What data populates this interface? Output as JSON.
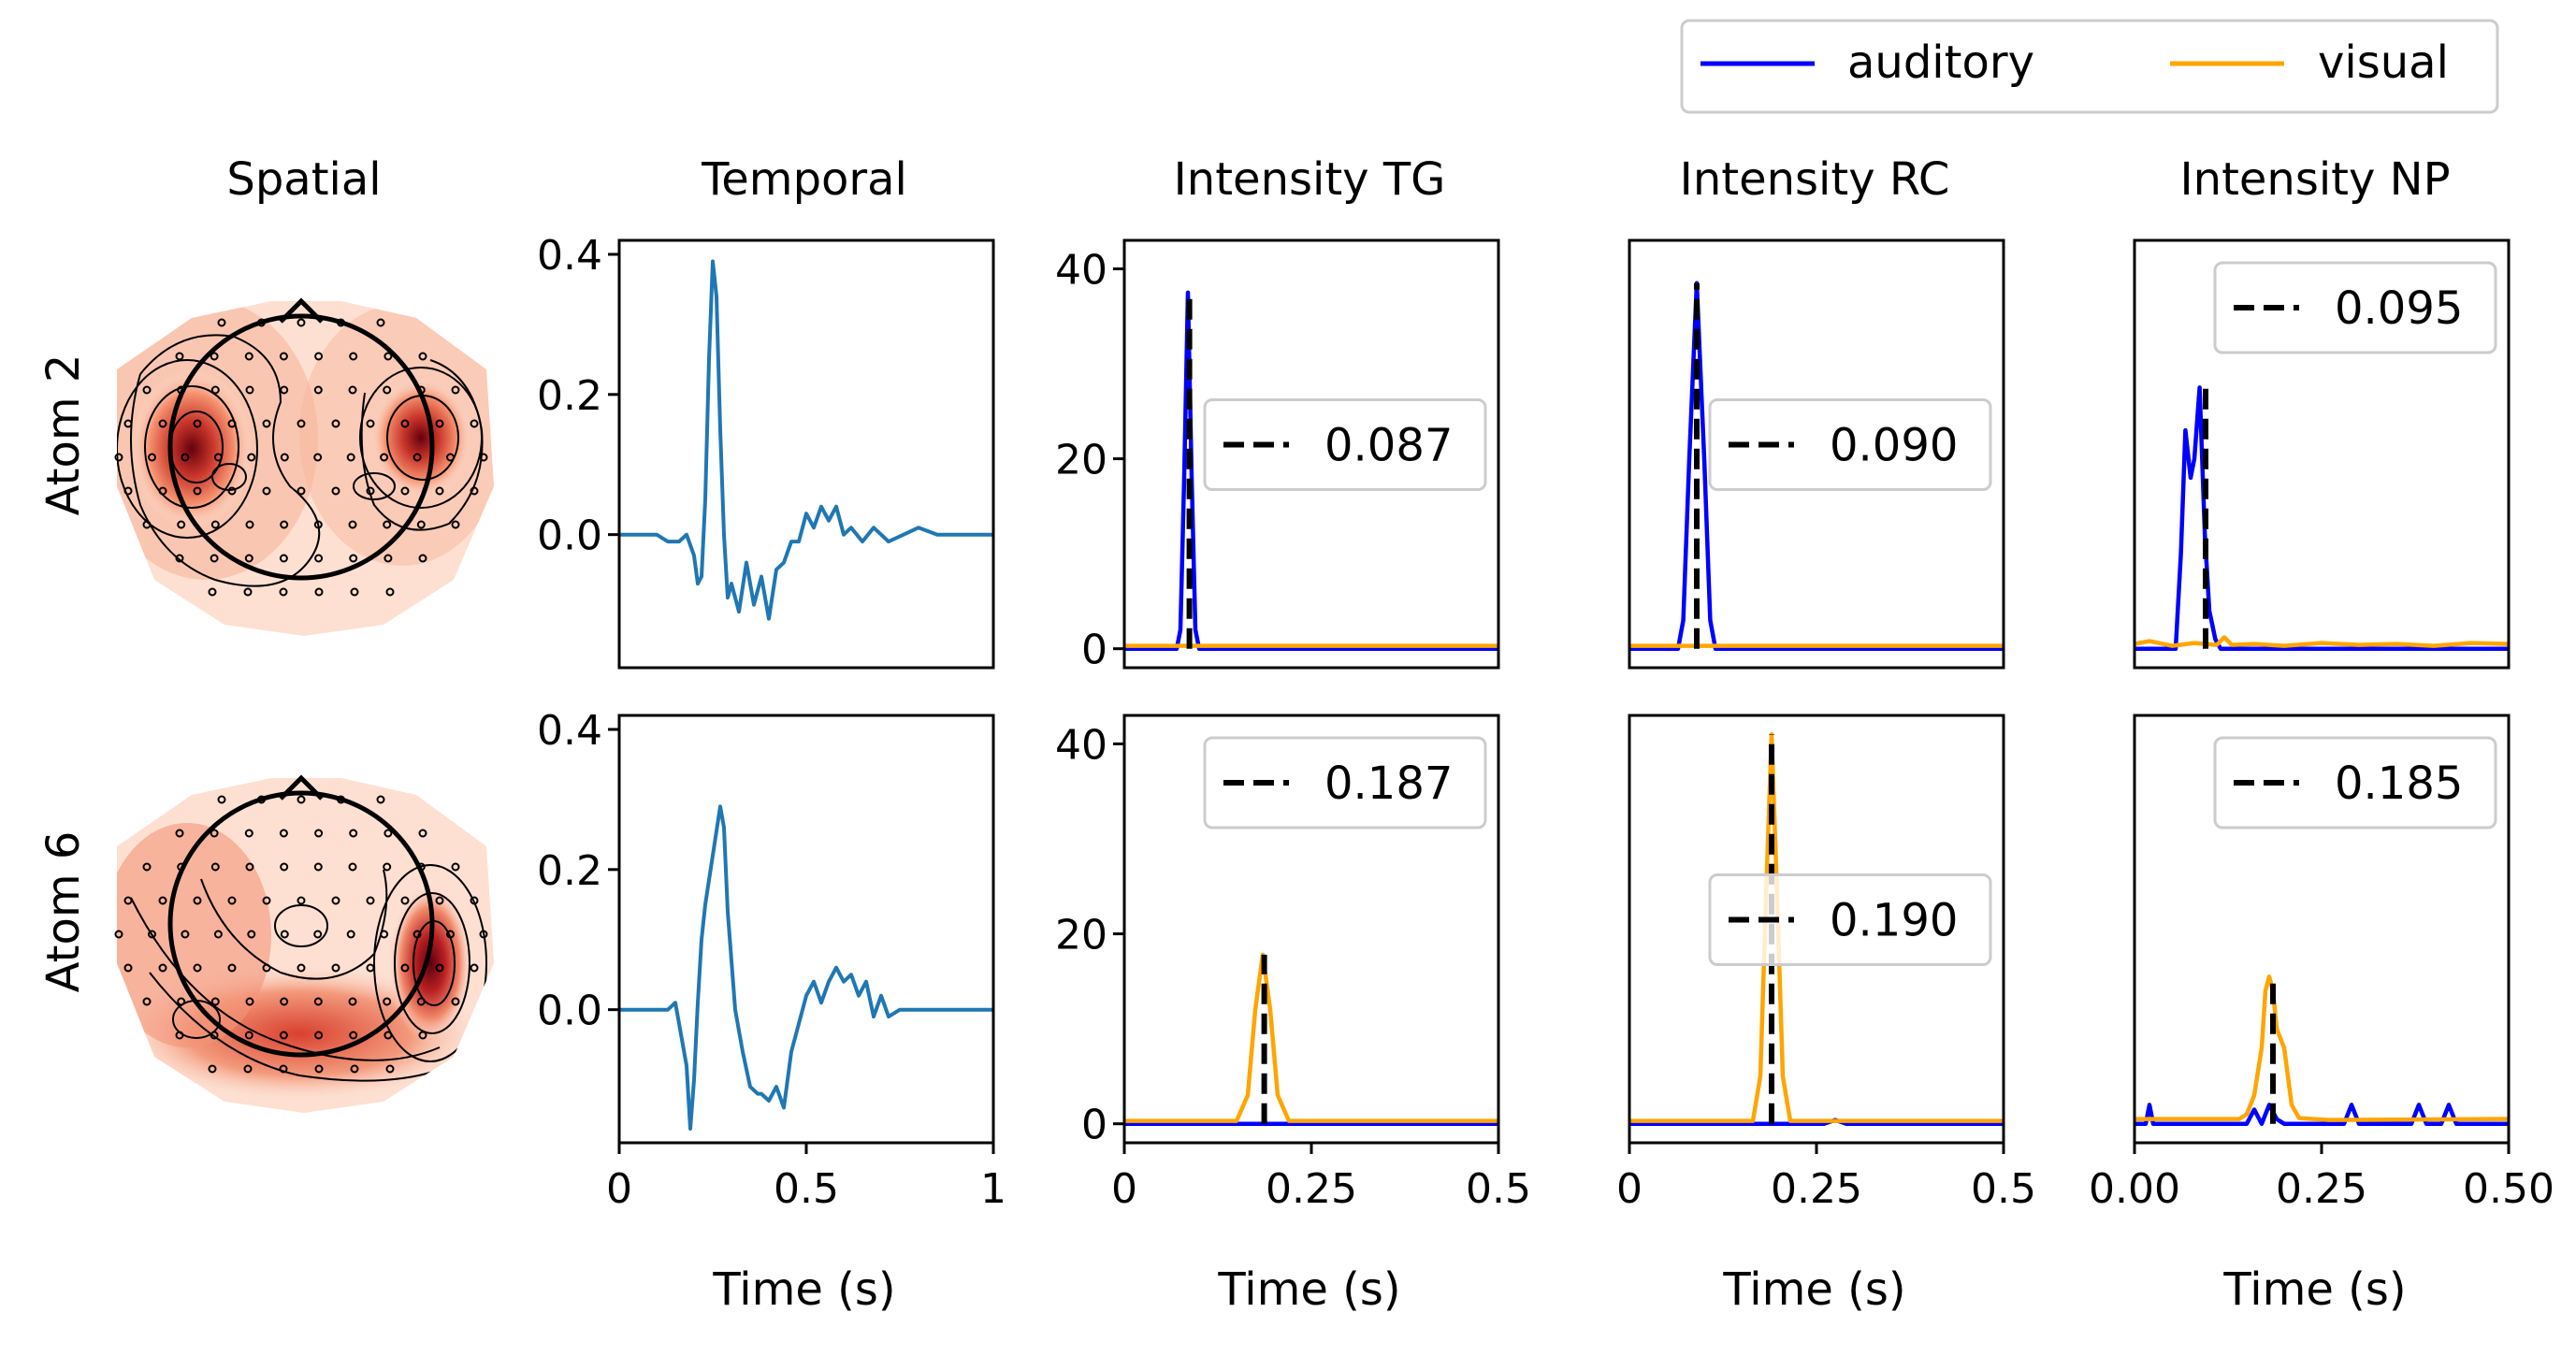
{
  "figure": {
    "legend": {
      "placement": "top-right",
      "entries": [
        {
          "name": "auditory",
          "color": "#0000ff"
        },
        {
          "name": "visual",
          "color": "#ffa500"
        }
      ]
    },
    "column_titles": [
      "Spatial",
      "Temporal",
      "Intensity TG",
      "Intensity RC",
      "Intensity NP"
    ],
    "row_labels": [
      "Atom  2",
      "Atom  6"
    ],
    "xlabel": "Time (s)"
  },
  "colors": {
    "temporal": "#1f77b4",
    "auditory": "#0000ff",
    "visual": "#ffa500",
    "vline": "#000000",
    "topomap": "#d62f1f"
  },
  "chart_data": [
    {
      "type": "line",
      "panel": "temporal",
      "row": "Atom  2",
      "xlim": [
        0,
        1
      ],
      "ylim": [
        -0.19,
        0.42
      ],
      "xticks": [],
      "yticks": [
        0.0,
        0.2,
        0.4
      ],
      "ytick_labels": [
        "0.0",
        "0.2",
        "0.4"
      ],
      "series": [
        {
          "x": [
            0,
            0.1,
            0.13,
            0.16,
            0.18,
            0.2,
            0.21,
            0.22,
            0.23,
            0.24,
            0.25,
            0.26,
            0.27,
            0.28,
            0.29,
            0.3,
            0.32,
            0.34,
            0.36,
            0.38,
            0.4,
            0.42,
            0.44,
            0.46,
            0.48,
            0.5,
            0.52,
            0.54,
            0.56,
            0.58,
            0.6,
            0.62,
            0.65,
            0.68,
            0.72,
            0.76,
            0.8,
            0.85,
            0.9,
            1.0
          ],
          "y": [
            0,
            0,
            -0.01,
            -0.01,
            0.0,
            -0.03,
            -0.07,
            -0.06,
            0.05,
            0.25,
            0.39,
            0.34,
            0.15,
            0.0,
            -0.09,
            -0.07,
            -0.11,
            -0.04,
            -0.1,
            -0.06,
            -0.12,
            -0.05,
            -0.04,
            -0.01,
            -0.01,
            0.03,
            0.01,
            0.04,
            0.02,
            0.04,
            0.0,
            0.01,
            -0.01,
            0.01,
            -0.01,
            0.0,
            0.01,
            0.0,
            0.0,
            0.0
          ]
        }
      ]
    },
    {
      "type": "line",
      "panel": "temporal",
      "row": "Atom  6",
      "xlim": [
        0,
        1
      ],
      "ylim": [
        -0.19,
        0.42
      ],
      "xticks": [
        0,
        0.5,
        1
      ],
      "xtick_labels": [
        "0",
        "0.5",
        "1"
      ],
      "yticks": [
        0.0,
        0.2,
        0.4
      ],
      "ytick_labels": [
        "0.0",
        "0.2",
        "0.4"
      ],
      "series": [
        {
          "x": [
            0,
            0.1,
            0.13,
            0.15,
            0.16,
            0.18,
            0.19,
            0.2,
            0.21,
            0.22,
            0.23,
            0.25,
            0.27,
            0.28,
            0.29,
            0.31,
            0.33,
            0.35,
            0.37,
            0.38,
            0.4,
            0.42,
            0.44,
            0.46,
            0.48,
            0.5,
            0.52,
            0.54,
            0.56,
            0.58,
            0.6,
            0.62,
            0.64,
            0.66,
            0.68,
            0.7,
            0.72,
            0.75,
            0.8,
            0.85,
            0.9,
            1.0
          ],
          "y": [
            0,
            0,
            0.0,
            0.01,
            -0.02,
            -0.08,
            -0.17,
            -0.1,
            0.01,
            0.1,
            0.15,
            0.22,
            0.29,
            0.26,
            0.14,
            0.0,
            -0.06,
            -0.11,
            -0.12,
            -0.12,
            -0.13,
            -0.11,
            -0.14,
            -0.06,
            -0.02,
            0.02,
            0.04,
            0.01,
            0.04,
            0.06,
            0.04,
            0.05,
            0.02,
            0.04,
            -0.01,
            0.02,
            -0.01,
            0.0,
            0.0,
            0.0,
            0.0,
            0.0
          ]
        }
      ]
    },
    {
      "type": "line",
      "panel": "Intensity TG",
      "row": "Atom  2",
      "xlim": [
        0,
        0.5
      ],
      "ylim": [
        -2,
        43
      ],
      "xticks": [],
      "yticks": [
        0,
        20,
        40
      ],
      "ytick_labels": [
        "0",
        "20",
        "40"
      ],
      "series": [
        {
          "name": "auditory",
          "x": [
            0,
            0.07,
            0.075,
            0.08,
            0.085,
            0.09,
            0.095,
            0.1,
            0.105,
            0.5
          ],
          "y": [
            0,
            0,
            2,
            18,
            37.5,
            18,
            2,
            0,
            0,
            0
          ]
        },
        {
          "name": "visual",
          "x": [
            0,
            0.5
          ],
          "y": [
            0.3,
            0.3
          ]
        }
      ],
      "vline": 0.087,
      "legend_label": "0.087",
      "legend_placement": "center-right"
    },
    {
      "type": "line",
      "panel": "Intensity TG",
      "row": "Atom  6",
      "xlim": [
        0,
        0.5
      ],
      "ylim": [
        -2,
        43
      ],
      "xticks": [
        0,
        0.25,
        0.5
      ],
      "xtick_labels": [
        "0",
        "0.25",
        "0.5"
      ],
      "yticks": [
        0,
        20,
        40
      ],
      "ytick_labels": [
        "0",
        "20",
        "40"
      ],
      "series": [
        {
          "name": "auditory",
          "x": [
            0,
            0.5
          ],
          "y": [
            0,
            0
          ]
        },
        {
          "name": "visual",
          "x": [
            0,
            0.15,
            0.165,
            0.175,
            0.185,
            0.195,
            0.205,
            0.22,
            0.5
          ],
          "y": [
            0.3,
            0.3,
            3,
            12,
            17.8,
            12,
            3,
            0.3,
            0.3
          ]
        }
      ],
      "vline": 0.187,
      "legend_label": "0.187",
      "legend_placement": "upper-right"
    },
    {
      "type": "line",
      "panel": "Intensity RC",
      "row": "Atom  2",
      "xlim": [
        0,
        0.5
      ],
      "ylim": [
        -2,
        43
      ],
      "xticks": [],
      "yticks": [],
      "series": [
        {
          "name": "auditory",
          "x": [
            0,
            0.065,
            0.072,
            0.08,
            0.09,
            0.1,
            0.108,
            0.115,
            0.5
          ],
          "y": [
            0,
            0,
            3,
            20,
            38.5,
            20,
            3,
            0,
            0
          ]
        },
        {
          "name": "visual",
          "x": [
            0,
            0.5
          ],
          "y": [
            0.3,
            0.3
          ]
        }
      ],
      "vline": 0.09,
      "legend_label": "0.090",
      "legend_placement": "center-right"
    },
    {
      "type": "line",
      "panel": "Intensity RC",
      "row": "Atom  6",
      "xlim": [
        0,
        0.5
      ],
      "ylim": [
        -2,
        43
      ],
      "xticks": [
        0,
        0.25,
        0.5
      ],
      "xtick_labels": [
        "0",
        "0.25",
        "0.5"
      ],
      "yticks": [],
      "series": [
        {
          "name": "auditory",
          "x": [
            0,
            0.26,
            0.275,
            0.29,
            0.5
          ],
          "y": [
            0,
            0,
            0.4,
            0,
            0
          ]
        },
        {
          "name": "visual",
          "x": [
            0,
            0.165,
            0.175,
            0.183,
            0.19,
            0.197,
            0.205,
            0.215,
            0.5
          ],
          "y": [
            0.3,
            0.3,
            5,
            25,
            41,
            25,
            5,
            0.3,
            0.3
          ]
        }
      ],
      "vline": 0.19,
      "legend_label": "0.190",
      "legend_placement": "center-right"
    },
    {
      "type": "line",
      "panel": "Intensity NP",
      "row": "Atom  2",
      "xlim": [
        0,
        0.5
      ],
      "ylim": [
        -2,
        43
      ],
      "xticks": [],
      "yticks": [],
      "series": [
        {
          "name": "auditory",
          "x": [
            0,
            0.055,
            0.062,
            0.068,
            0.075,
            0.08,
            0.087,
            0.094,
            0.1,
            0.108,
            0.115,
            0.5
          ],
          "y": [
            0,
            0,
            10,
            23,
            18,
            20,
            27.5,
            12,
            4,
            1,
            0,
            0
          ]
        },
        {
          "name": "visual",
          "x": [
            0,
            0.02,
            0.05,
            0.08,
            0.11,
            0.12,
            0.13,
            0.16,
            0.2,
            0.25,
            0.3,
            0.35,
            0.4,
            0.45,
            0.5
          ],
          "y": [
            0.5,
            0.8,
            0.3,
            0.6,
            0.4,
            1.2,
            0.4,
            0.5,
            0.3,
            0.6,
            0.4,
            0.5,
            0.3,
            0.6,
            0.5
          ]
        }
      ],
      "vline": 0.095,
      "legend_label": "0.095",
      "legend_placement": "upper-right"
    },
    {
      "type": "line",
      "panel": "Intensity NP",
      "row": "Atom  6",
      "xlim": [
        0,
        0.5
      ],
      "ylim": [
        -2,
        43
      ],
      "xticks": [
        0,
        0.25,
        0.5
      ],
      "xtick_labels": [
        "0.00",
        "0.25",
        "0.50"
      ],
      "yticks": [],
      "series": [
        {
          "name": "auditory",
          "x": [
            0,
            0.015,
            0.02,
            0.025,
            0.15,
            0.16,
            0.17,
            0.18,
            0.19,
            0.2,
            0.28,
            0.29,
            0.3,
            0.37,
            0.38,
            0.39,
            0.41,
            0.42,
            0.43,
            0.5
          ],
          "y": [
            0,
            0,
            2,
            0,
            0,
            1.5,
            0,
            2,
            0.5,
            0,
            0,
            2,
            0,
            0,
            2,
            0,
            0,
            2,
            0,
            0
          ]
        },
        {
          "name": "visual",
          "x": [
            0,
            0.14,
            0.15,
            0.16,
            0.17,
            0.175,
            0.18,
            0.185,
            0.19,
            0.2,
            0.21,
            0.22,
            0.24,
            0.26,
            0.5
          ],
          "y": [
            0.5,
            0.5,
            1,
            3,
            8,
            14,
            15.5,
            14,
            10,
            8,
            2,
            0.6,
            0.5,
            0.4,
            0.5
          ]
        }
      ],
      "vline": 0.185,
      "legend_label": "0.185",
      "legend_placement": "upper-right"
    }
  ]
}
